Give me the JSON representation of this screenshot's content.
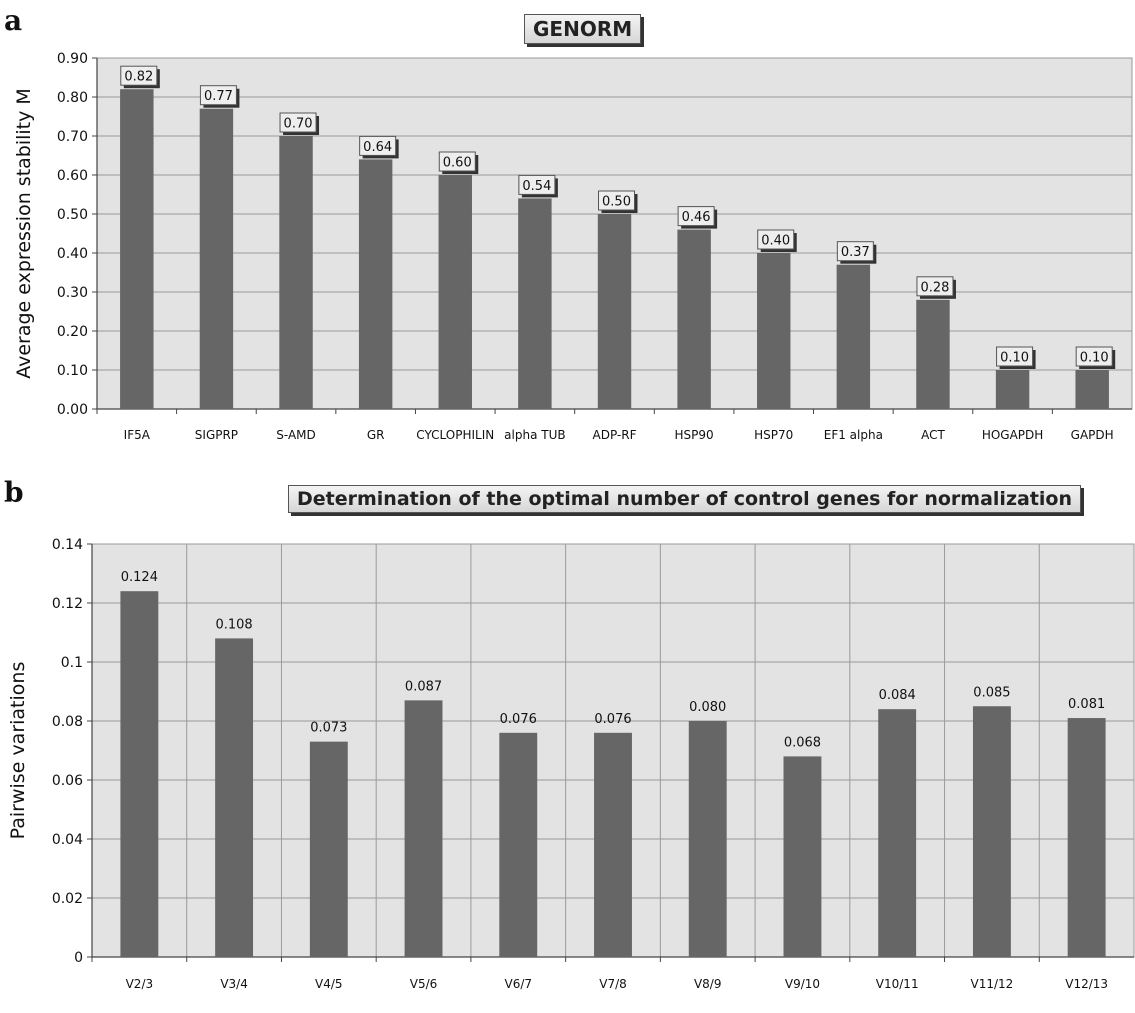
{
  "panel_labels": [
    "a",
    "b"
  ],
  "chart_data": [
    {
      "type": "bar",
      "title": "GENORM",
      "xlabel": "",
      "ylabel": "Average expression stability M",
      "categories": [
        "IF5A",
        "SIGPRP",
        "S-AMD",
        "GR",
        "CYCLOPHILIN",
        "alpha TUB",
        "ADP-RF",
        "HSP90",
        "HSP70",
        "EF1 alpha",
        "ACT",
        "HOGAPDH",
        "GAPDH"
      ],
      "values": [
        0.82,
        0.77,
        0.7,
        0.64,
        0.6,
        0.54,
        0.5,
        0.46,
        0.4,
        0.37,
        0.28,
        0.1,
        0.1
      ],
      "data_labels": [
        "0.82",
        "0.77",
        "0.70",
        "0.64",
        "0.60",
        "0.54",
        "0.50",
        "0.46",
        "0.40",
        "0.37",
        "0.28",
        "0.10",
        "0.10"
      ],
      "ylim": [
        0,
        0.9
      ],
      "yticks": [
        "0.00",
        "0.10",
        "0.20",
        "0.30",
        "0.40",
        "0.50",
        "0.60",
        "0.70",
        "0.80",
        "0.90"
      ],
      "grid": "horizontal",
      "bar_color": "#666666",
      "plot_background": "#e3e3e3"
    },
    {
      "type": "bar",
      "title": "Determination of the optimal number of control genes for normalization",
      "xlabel": "",
      "ylabel": "Pairwise variations",
      "categories": [
        "V2/3",
        "V3/4",
        "V4/5",
        "V5/6",
        "V6/7",
        "V7/8",
        "V8/9",
        "V9/10",
        "V10/11",
        "V11/12",
        "V12/13"
      ],
      "values": [
        0.124,
        0.108,
        0.073,
        0.087,
        0.076,
        0.076,
        0.08,
        0.068,
        0.084,
        0.085,
        0.081
      ],
      "data_labels": [
        "0.124",
        "0.108",
        "0.073",
        "0.087",
        "0.076",
        "0.076",
        "0.080",
        "0.068",
        "0.084",
        "0.085",
        "0.081"
      ],
      "ylim": [
        0,
        0.14
      ],
      "yticks": [
        "0",
        "0.02",
        "0.04",
        "0.06",
        "0.08",
        "0.1",
        "0.12",
        "0.14"
      ],
      "grid": "both",
      "bar_color": "#666666",
      "plot_background": "#e3e3e3"
    }
  ]
}
